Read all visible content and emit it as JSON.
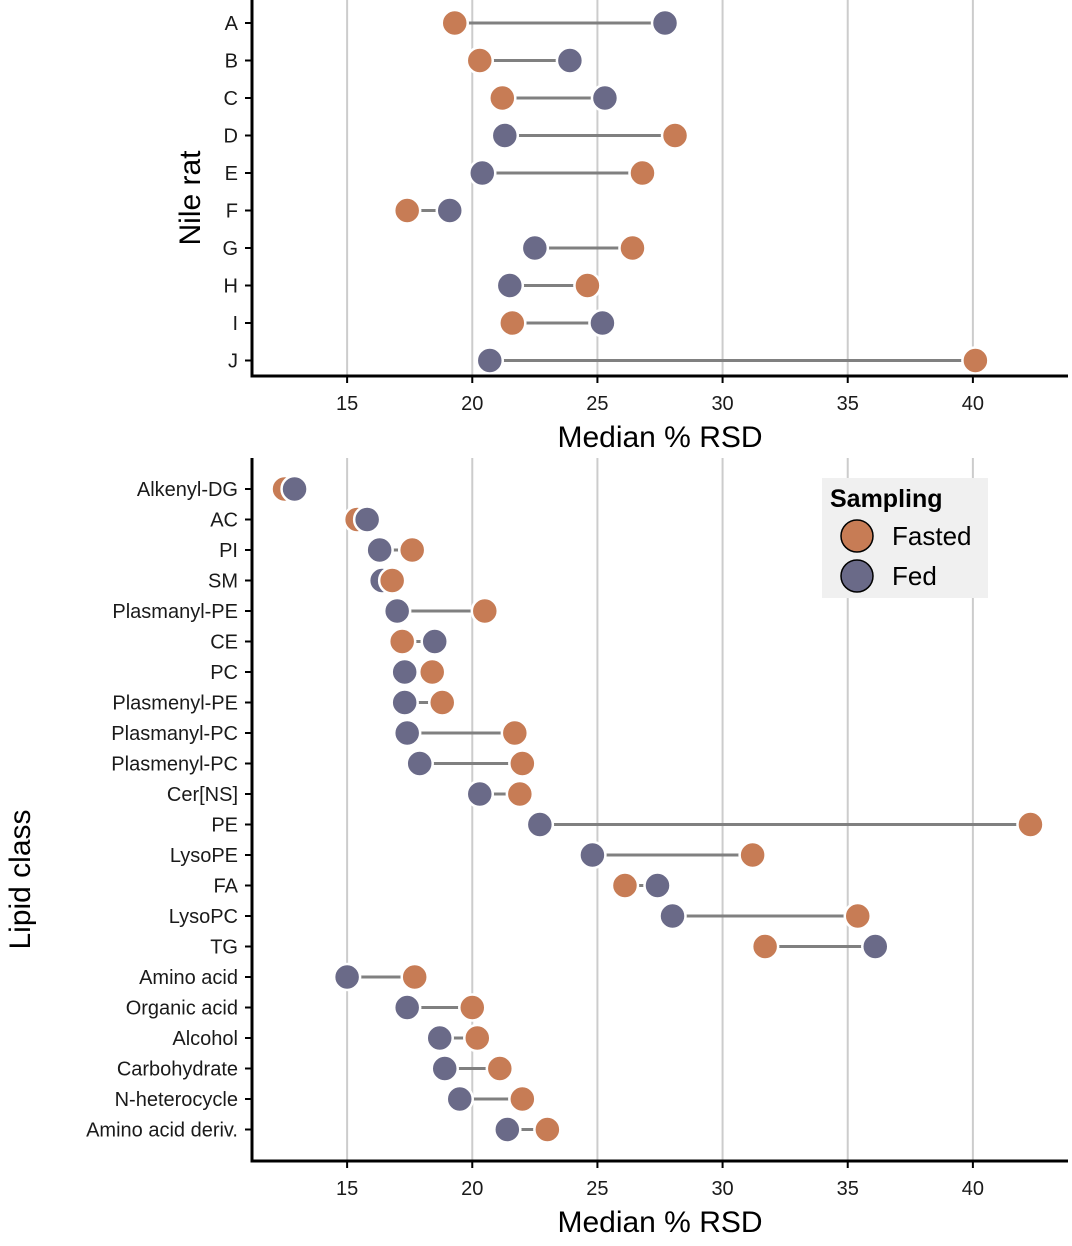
{
  "colors": {
    "fasted": "#C77C55",
    "fed": "#6A6A88",
    "connector": "#808080",
    "grid": "#CCCCCC"
  },
  "chart_data": [
    {
      "type": "dumbbell",
      "xlabel": "Median % RSD",
      "ylabel": "Nile rat",
      "xlim": [
        11.2,
        43.8
      ],
      "xticks": [
        15,
        20,
        25,
        30,
        35,
        40
      ],
      "grid": "vertical",
      "categories": [
        "A",
        "B",
        "C",
        "D",
        "E",
        "F",
        "G",
        "H",
        "I",
        "J"
      ],
      "series": [
        {
          "name": "Fasted",
          "values": [
            19.3,
            20.3,
            21.2,
            28.1,
            26.8,
            17.4,
            26.4,
            24.6,
            21.6,
            40.1
          ]
        },
        {
          "name": "Fed",
          "values": [
            27.7,
            23.9,
            25.3,
            21.3,
            20.4,
            19.1,
            22.5,
            21.5,
            25.2,
            20.7
          ]
        }
      ]
    },
    {
      "type": "dumbbell",
      "xlabel": "Median % RSD",
      "ylabel": "Lipid class",
      "xlim": [
        11.2,
        43.8
      ],
      "xticks": [
        15,
        20,
        25,
        30,
        35,
        40
      ],
      "grid": "vertical",
      "categories": [
        "Alkenyl-DG",
        "AC",
        "PI",
        "SM",
        "Plasmanyl-PE",
        "CE",
        "PC",
        "Plasmenyl-PE",
        "Plasmanyl-PC",
        "Plasmenyl-PC",
        "Cer[NS]",
        "PE",
        "LysoPE",
        "FA",
        "LysoPC",
        "TG",
        "Amino acid",
        "Organic acid",
        "Alcohol",
        "Carbohydrate",
        "N-heterocycle",
        "Amino acid deriv."
      ],
      "series": [
        {
          "name": "Fasted",
          "values": [
            12.5,
            15.4,
            17.6,
            16.8,
            20.5,
            17.2,
            18.4,
            18.8,
            21.7,
            22.0,
            21.9,
            42.3,
            31.2,
            26.1,
            35.4,
            31.7,
            17.7,
            20.0,
            20.2,
            21.1,
            22.0,
            23.0
          ]
        },
        {
          "name": "Fed",
          "values": [
            12.9,
            15.8,
            16.3,
            16.4,
            17.0,
            18.5,
            17.3,
            17.3,
            17.4,
            17.9,
            20.3,
            22.7,
            24.8,
            27.4,
            28.0,
            36.1,
            15.0,
            17.4,
            18.7,
            18.9,
            19.5,
            21.4
          ]
        }
      ],
      "legend": {
        "title": "Sampling",
        "entries": [
          "Fasted",
          "Fed"
        ],
        "placement": "top-right"
      }
    }
  ]
}
